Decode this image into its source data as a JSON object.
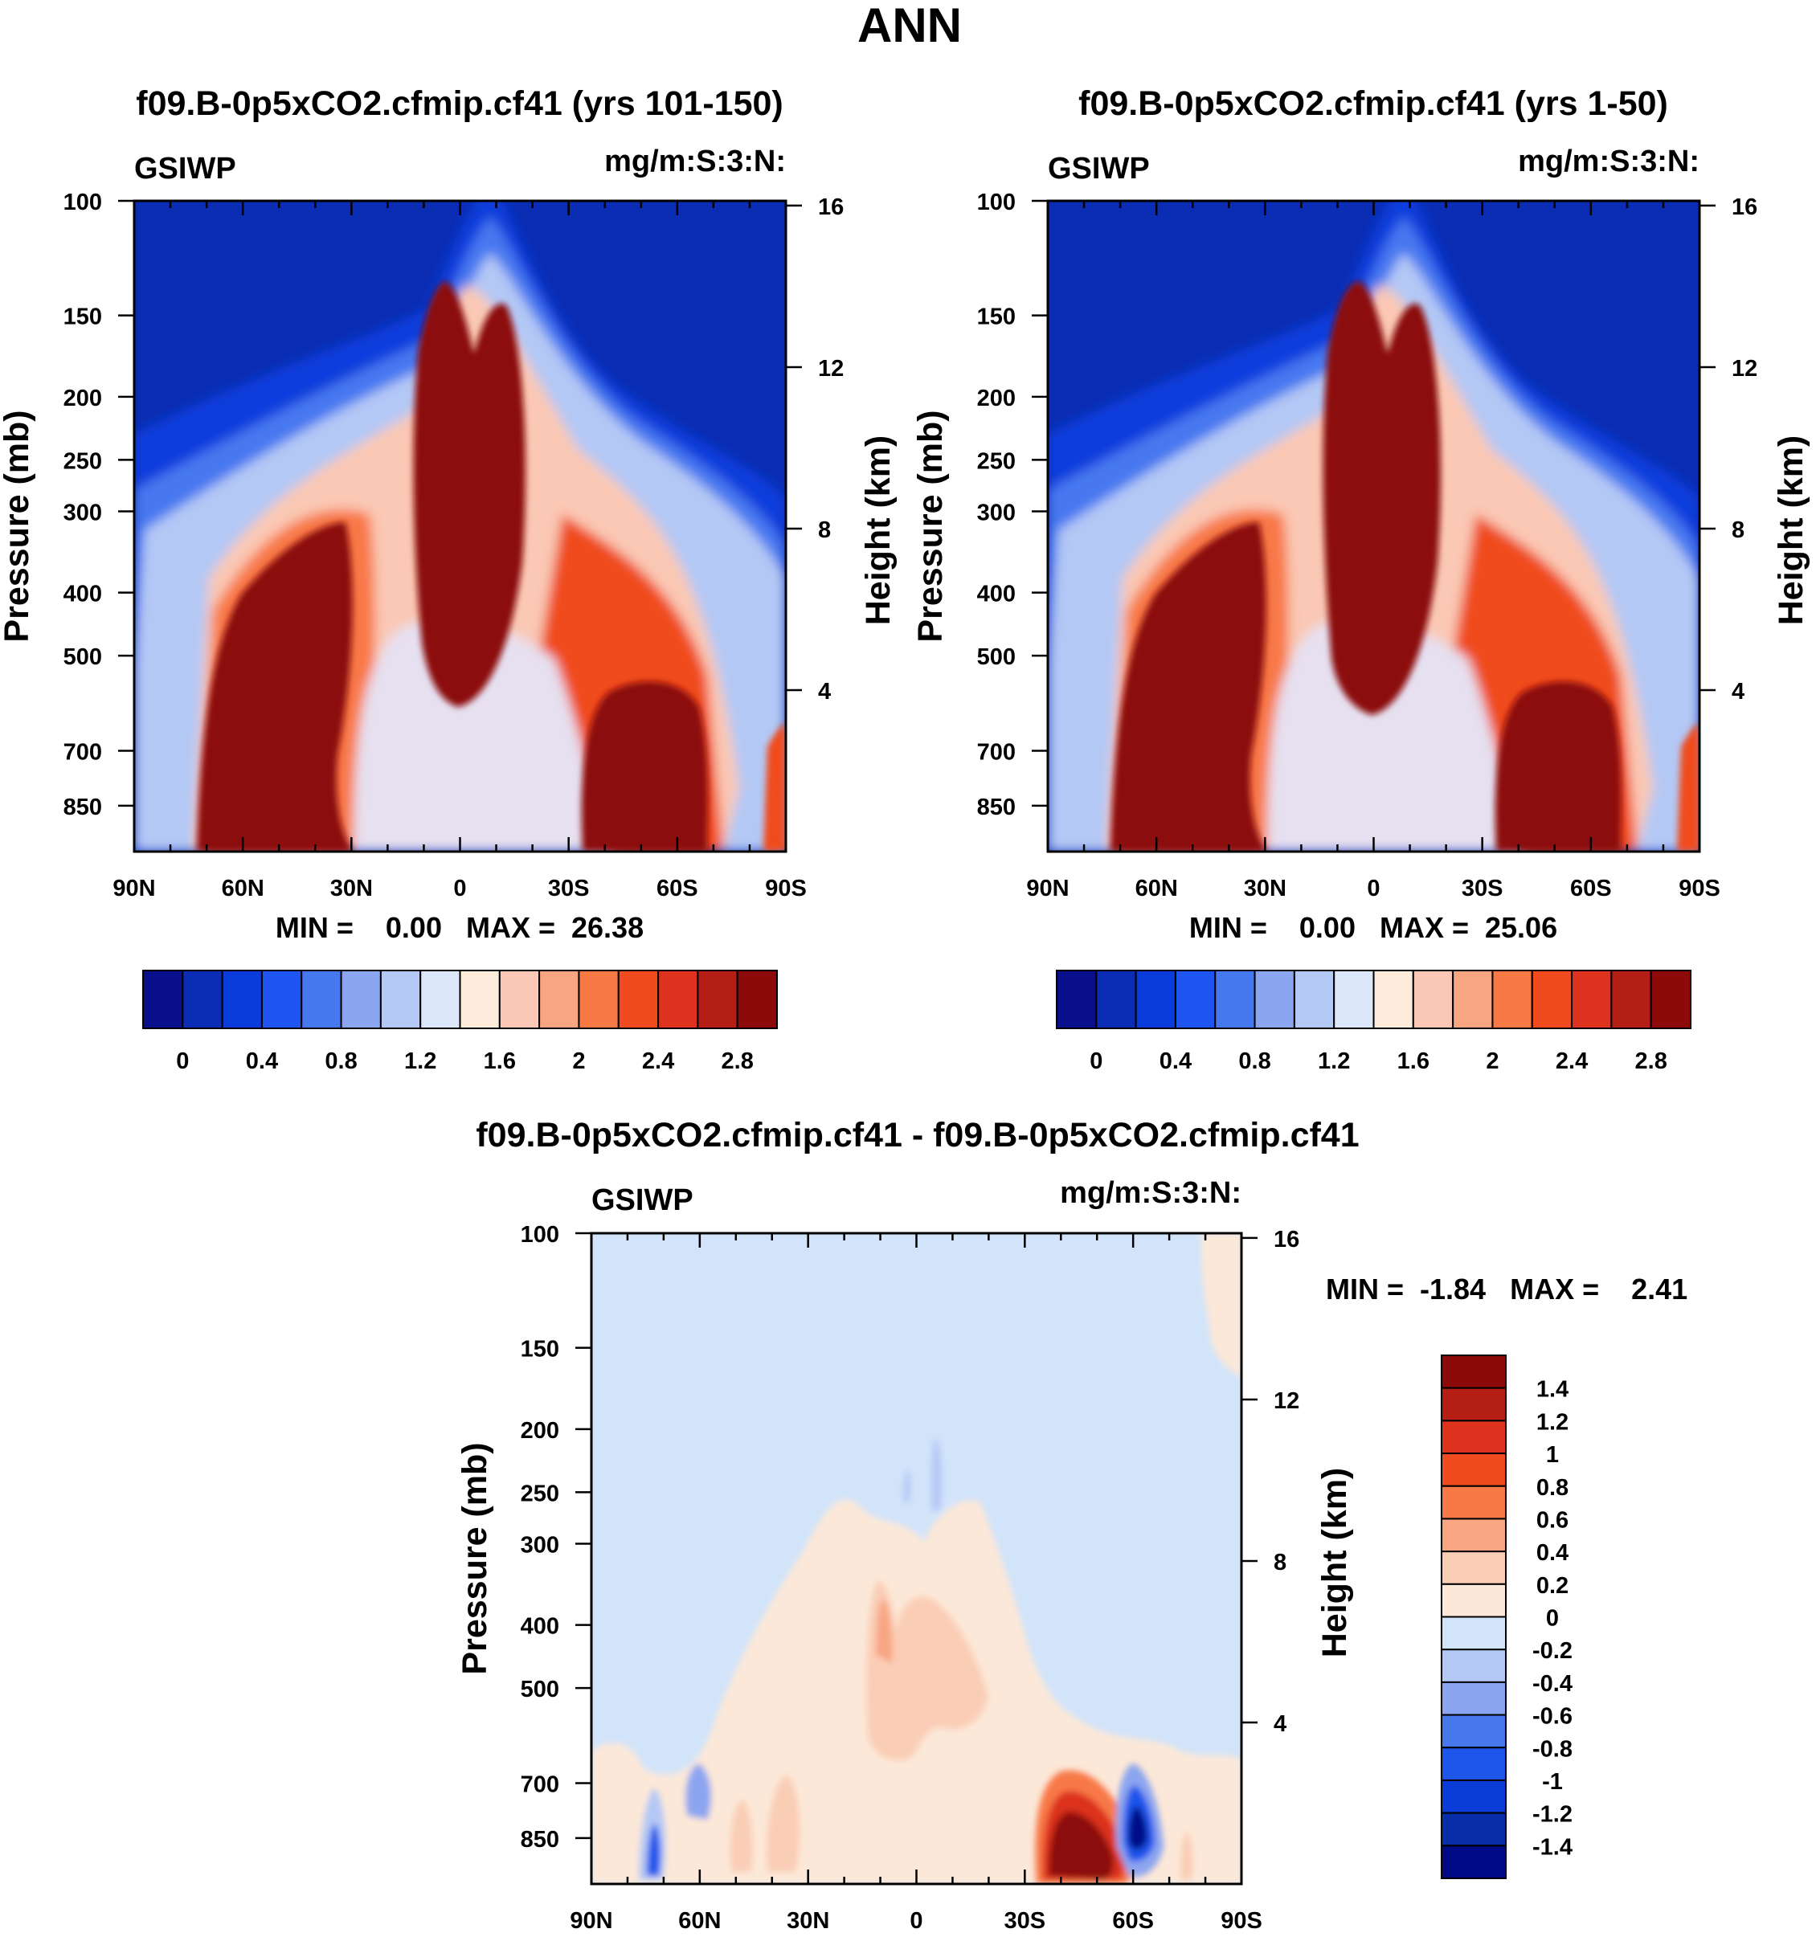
{
  "figure": {
    "title": "ANN"
  },
  "colors": {
    "abs_scale": [
      "#0A0F8C",
      "#0A2DB4",
      "#0A3CDC",
      "#1E55F0",
      "#4678F0",
      "#8CA5F0",
      "#B4C8F5",
      "#DCE8FA",
      "#FDEBDC",
      "#FAC8B4",
      "#F8A582",
      "#F87846",
      "#F04B1E",
      "#DC321E",
      "#B41E14",
      "#8C0A0A"
    ],
    "diff_scale": [
      "#000A87",
      "#0A2DAA",
      "#0A3CD7",
      "#1E55EB",
      "#4678EB",
      "#8CA5F0",
      "#B4C8F5",
      "#D2E4FA",
      "#FCE8D8",
      "#FACDB5",
      "#F8A582",
      "#F87846",
      "#F04B1E",
      "#DC321E",
      "#B41E14",
      "#8C0A0A"
    ]
  },
  "panels": [
    {
      "id": "panel-a",
      "title": "f09.B-0p5xCO2.cfmip.cf41 (yrs 101-150)",
      "var_name": "GSIWP",
      "units": "mg/m:S:3:N:",
      "ylabel": "Pressure (mb)",
      "ylabel_right": "Height (km)",
      "minmax": "MIN =    0.00   MAX =  26.38"
    },
    {
      "id": "panel-b",
      "title": "f09.B-0p5xCO2.cfmip.cf41 (yrs 1-50)",
      "var_name": "GSIWP",
      "units": "mg/m:S:3:N:",
      "ylabel": "Pressure (mb)",
      "ylabel_right": "Height (km)",
      "minmax": "MIN =    0.00   MAX =  25.06"
    },
    {
      "id": "panel-c",
      "title": "f09.B-0p5xCO2.cfmip.cf41 - f09.B-0p5xCO2.cfmip.cf41",
      "var_name": "GSIWP",
      "units": "mg/m:S:3:N:",
      "ylabel": "Pressure (mb)",
      "ylabel_right": "Height (km)",
      "minmax": "MIN =  -1.84   MAX =    2.41"
    }
  ],
  "chart_data": [
    {
      "type": "heatmap",
      "title": "f09.B-0p5xCO2.cfmip.cf41 (yrs 101-150)",
      "xlabel": "",
      "ylabel": "Pressure (mb)",
      "ylabel_right": "Height (km)",
      "x_ticks": [
        "90N",
        "60N",
        "30N",
        "0",
        "30S",
        "60S",
        "90S"
      ],
      "y_ticks": [
        "100",
        "150",
        "200",
        "250",
        "300",
        "400",
        "500",
        "700",
        "850"
      ],
      "y_right_ticks": [
        "16",
        "12",
        "8",
        "4"
      ],
      "ylim": [
        100,
        1000
      ],
      "xlim": [
        90,
        -90
      ],
      "colorbar_labels": [
        "0",
        "0.4",
        "0.8",
        "1.2",
        "1.6",
        "2",
        "2.4",
        "2.8"
      ],
      "min": 0.0,
      "max": 26.38
    },
    {
      "type": "heatmap",
      "title": "f09.B-0p5xCO2.cfmip.cf41 (yrs 1-50)",
      "xlabel": "",
      "ylabel": "Pressure (mb)",
      "ylabel_right": "Height (km)",
      "x_ticks": [
        "90N",
        "60N",
        "30N",
        "0",
        "30S",
        "60S",
        "90S"
      ],
      "y_ticks": [
        "100",
        "150",
        "200",
        "250",
        "300",
        "400",
        "500",
        "700",
        "850"
      ],
      "y_right_ticks": [
        "16",
        "12",
        "8",
        "4"
      ],
      "ylim": [
        100,
        1000
      ],
      "xlim": [
        90,
        -90
      ],
      "colorbar_labels": [
        "0",
        "0.4",
        "0.8",
        "1.2",
        "1.6",
        "2",
        "2.4",
        "2.8"
      ],
      "min": 0.0,
      "max": 25.06
    },
    {
      "type": "heatmap",
      "title": "f09.B-0p5xCO2.cfmip.cf41 - f09.B-0p5xCO2.cfmip.cf41",
      "xlabel": "",
      "ylabel": "Pressure (mb)",
      "ylabel_right": "Height (km)",
      "x_ticks": [
        "90N",
        "60N",
        "30N",
        "0",
        "30S",
        "60S",
        "90S"
      ],
      "y_ticks": [
        "100",
        "150",
        "200",
        "250",
        "300",
        "400",
        "500",
        "700",
        "850"
      ],
      "y_right_ticks": [
        "16",
        "12",
        "8",
        "4"
      ],
      "ylim": [
        100,
        1000
      ],
      "xlim": [
        90,
        -90
      ],
      "colorbar_labels": [
        "1.4",
        "1.2",
        "1",
        "0.8",
        "0.6",
        "0.4",
        "0.2",
        "0",
        "-0.2",
        "-0.4",
        "-0.6",
        "-0.8",
        "-1",
        "-1.2",
        "-1.4"
      ],
      "min": -1.84,
      "max": 2.41
    }
  ]
}
